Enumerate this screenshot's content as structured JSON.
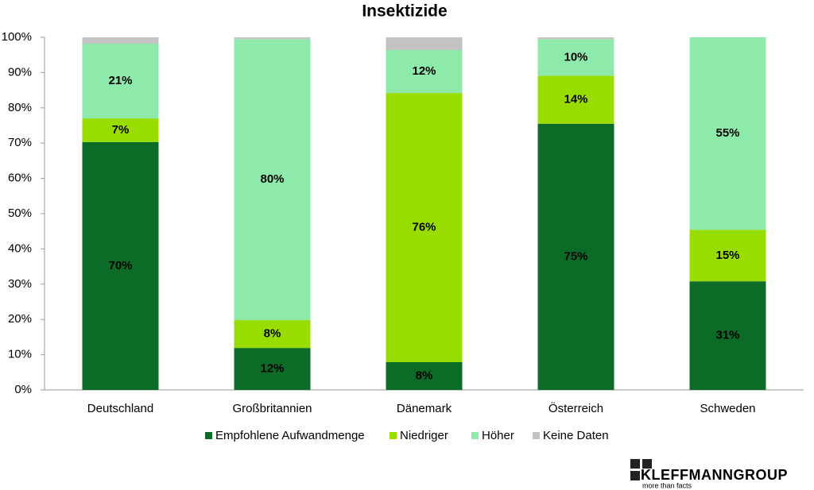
{
  "chart_data": {
    "type": "stacked_bar",
    "title": "Insektizide",
    "categories": [
      "Deutschland",
      "Großbritannien",
      "Dänemark",
      "Österreich",
      "Schweden"
    ],
    "series": [
      {
        "name": "Empfohlene Aufwandmenge",
        "color": "#0b6b27",
        "label_color": "#ffffff",
        "values": [
          70.3,
          11.9,
          7.9,
          75.5,
          30.8
        ],
        "value_labels": [
          "70%",
          "12%",
          "8%",
          "75%",
          "31%"
        ]
      },
      {
        "name": "Niedriger",
        "color": "#99dd00",
        "label_color": "#000000",
        "values": [
          6.7,
          7.9,
          76.3,
          13.6,
          14.6
        ],
        "value_labels": [
          "7%",
          "8%",
          "76%",
          "14%",
          "15%"
        ]
      },
      {
        "name": "Höher",
        "color": "#8eeaaa",
        "label_color": "#000000",
        "values": [
          21.2,
          79.7,
          12.2,
          10.4,
          54.6
        ],
        "value_labels": [
          "21%",
          "80%",
          "12%",
          "10%",
          "55%"
        ]
      },
      {
        "name": "Keine Daten",
        "color": "#c3c3c3",
        "label_color": "#000000",
        "values": [
          1.8,
          0.5,
          3.6,
          0.5,
          0
        ],
        "value_labels": [
          null,
          null,
          null,
          null,
          null
        ]
      }
    ],
    "ylim": [
      0,
      100
    ],
    "yticks": [
      {
        "value": 0,
        "label": "0%"
      },
      {
        "value": 10,
        "label": "10%"
      },
      {
        "value": 20,
        "label": "20%"
      },
      {
        "value": 30,
        "label": "30%"
      },
      {
        "value": 40,
        "label": "40%"
      },
      {
        "value": 50,
        "label": "50%"
      },
      {
        "value": 60,
        "label": "60%"
      },
      {
        "value": 70,
        "label": "70%"
      },
      {
        "value": 80,
        "label": "80%"
      },
      {
        "value": 90,
        "label": "90%"
      },
      {
        "value": 100,
        "label": "100%"
      }
    ],
    "grid": false,
    "legend": "bottom"
  },
  "logo": {
    "name": "KLEFFMANNGROUP",
    "tagline": "more than facts"
  }
}
